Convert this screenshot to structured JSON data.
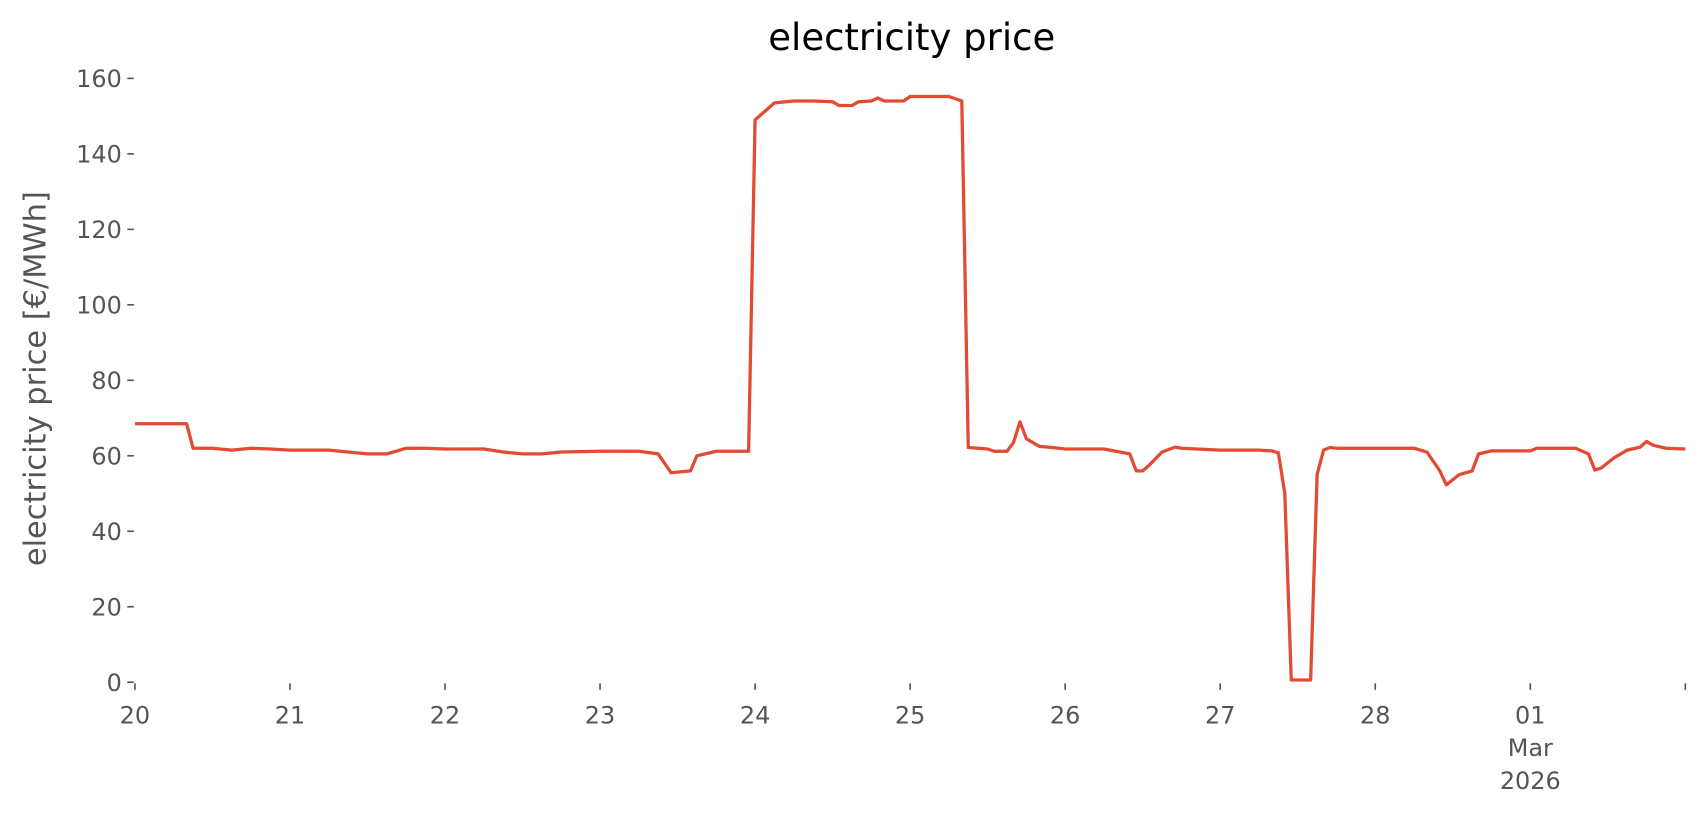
{
  "chart_data": {
    "type": "line",
    "title": "electricity price",
    "y_label": "electricity price [€/MWh]",
    "color": "#E24A33",
    "grid": false,
    "ylim": [
      0,
      160
    ],
    "yticks": [
      0,
      20,
      40,
      60,
      80,
      100,
      120,
      140,
      160
    ],
    "xlim": [
      "2026-02-20T00:00",
      "2026-03-02T00:00"
    ],
    "xticks": [
      {
        "value": "2026-02-20T00:00",
        "label": "20"
      },
      {
        "value": "2026-02-21T00:00",
        "label": "21"
      },
      {
        "value": "2026-02-22T00:00",
        "label": "22"
      },
      {
        "value": "2026-02-23T00:00",
        "label": "23"
      },
      {
        "value": "2026-02-24T00:00",
        "label": "24"
      },
      {
        "value": "2026-02-25T00:00",
        "label": "25"
      },
      {
        "value": "2026-02-26T00:00",
        "label": "26"
      },
      {
        "value": "2026-02-27T00:00",
        "label": "27"
      },
      {
        "value": "2026-02-28T00:00",
        "label": "28"
      },
      {
        "value": "2026-03-01T00:00",
        "label": "01\nMar\n2026"
      },
      {
        "value": "2026-03-02T00:00",
        "label": null
      }
    ],
    "x": [
      "2026-02-20T00:00",
      "2026-02-20T08:00",
      "2026-02-20T09:00",
      "2026-02-20T12:00",
      "2026-02-20T15:00",
      "2026-02-20T18:00",
      "2026-02-20T21:00",
      "2026-02-21T00:00",
      "2026-02-21T06:00",
      "2026-02-21T09:00",
      "2026-02-21T12:00",
      "2026-02-21T15:00",
      "2026-02-21T18:00",
      "2026-02-21T21:00",
      "2026-02-22T00:00",
      "2026-02-22T06:00",
      "2026-02-22T09:00",
      "2026-02-22T12:00",
      "2026-02-22T15:00",
      "2026-02-22T18:00",
      "2026-02-23T00:00",
      "2026-02-23T06:00",
      "2026-02-23T09:00",
      "2026-02-23T11:00",
      "2026-02-23T14:00",
      "2026-02-23T15:00",
      "2026-02-23T18:00",
      "2026-02-23T23:00",
      "2026-02-24T00:00",
      "2026-02-24T03:00",
      "2026-02-24T06:00",
      "2026-02-24T09:00",
      "2026-02-24T12:00",
      "2026-02-24T13:00",
      "2026-02-24T15:00",
      "2026-02-24T16:00",
      "2026-02-24T18:00",
      "2026-02-24T19:00",
      "2026-02-24T20:00",
      "2026-02-24T23:00",
      "2026-02-25T00:00",
      "2026-02-25T03:00",
      "2026-02-25T06:00",
      "2026-02-25T08:00",
      "2026-02-25T09:00",
      "2026-02-25T12:00",
      "2026-02-25T13:00",
      "2026-02-25T15:00",
      "2026-02-25T16:00",
      "2026-02-25T17:00",
      "2026-02-25T18:00",
      "2026-02-25T20:00",
      "2026-02-25T22:00",
      "2026-02-26T00:00",
      "2026-02-26T06:00",
      "2026-02-26T10:00",
      "2026-02-26T11:00",
      "2026-02-26T12:00",
      "2026-02-26T13:00",
      "2026-02-26T15:00",
      "2026-02-26T17:00",
      "2026-02-26T18:00",
      "2026-02-27T00:00",
      "2026-02-27T06:00",
      "2026-02-27T08:00",
      "2026-02-27T09:00",
      "2026-02-27T10:00",
      "2026-02-27T11:00",
      "2026-02-27T14:00",
      "2026-02-27T15:00",
      "2026-02-27T16:00",
      "2026-02-27T17:00",
      "2026-02-27T18:00",
      "2026-02-28T00:00",
      "2026-02-28T06:00",
      "2026-02-28T08:00",
      "2026-02-28T10:00",
      "2026-02-28T11:00",
      "2026-02-28T13:00",
      "2026-02-28T15:00",
      "2026-02-28T16:00",
      "2026-02-28T18:00",
      "2026-03-01T00:00",
      "2026-03-01T01:00",
      "2026-03-01T07:00",
      "2026-03-01T09:00",
      "2026-03-01T10:00",
      "2026-03-01T11:00",
      "2026-03-01T13:00",
      "2026-03-01T15:00",
      "2026-03-01T17:00",
      "2026-03-01T18:00",
      "2026-03-01T19:00",
      "2026-03-01T21:00",
      "2026-03-02T00:00"
    ],
    "values": [
      68.5,
      68.5,
      62,
      62,
      61.5,
      62,
      61.8,
      61.5,
      61.5,
      61,
      60.5,
      60.5,
      62,
      62,
      61.8,
      61.8,
      61,
      60.5,
      60.5,
      61,
      61.2,
      61.2,
      60.5,
      55.5,
      56,
      60,
      61.2,
      61.2,
      149,
      153.5,
      154,
      154,
      153.8,
      152.8,
      152.8,
      153.8,
      154,
      154.8,
      154,
      154,
      155.2,
      155.2,
      155.2,
      154,
      62.2,
      61.8,
      61.2,
      61.2,
      63.5,
      69,
      64.5,
      62.5,
      62.2,
      61.8,
      61.8,
      60.5,
      56,
      56,
      57.5,
      61,
      62.3,
      62,
      61.5,
      61.5,
      61.3,
      60.8,
      50,
      0.6,
      0.6,
      55,
      61.5,
      62.2,
      62,
      62,
      62,
      61,
      56,
      52.3,
      55,
      56,
      60.5,
      61.3,
      61.3,
      62,
      62,
      60.5,
      56.2,
      56.8,
      59.5,
      61.5,
      62.3,
      63.8,
      62.8,
      62,
      61.8
    ]
  }
}
